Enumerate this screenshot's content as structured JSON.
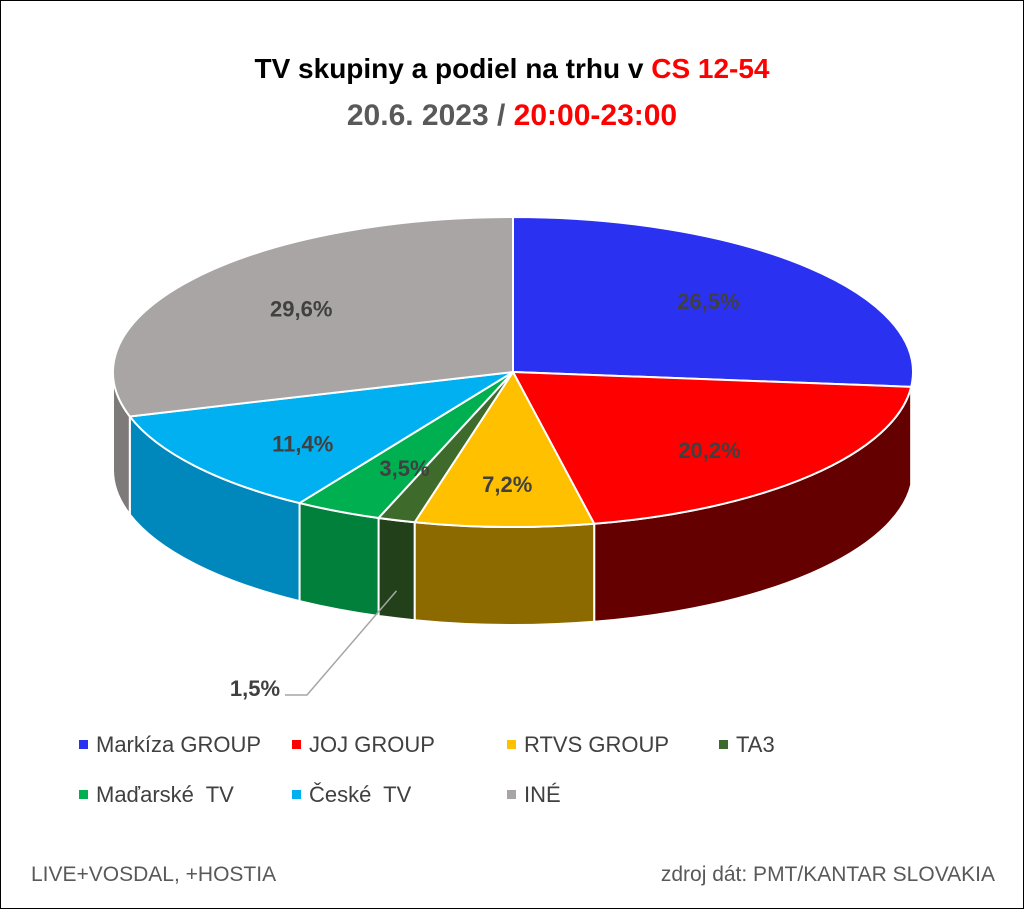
{
  "chart_data": {
    "type": "pie",
    "title_parts": [
      "TV skupiny a podiel na trhu v ",
      "CS 12-54"
    ],
    "subtitle_parts": [
      "20.6. 2023 / ",
      "20:00-23:00"
    ],
    "legend_placement": "bottom",
    "slices": [
      {
        "name": "Markíza GROUP",
        "value": 26.5,
        "label": "26,5%",
        "color": "#2b31f0",
        "side": "#2226bd"
      },
      {
        "name": "JOJ GROUP",
        "value": 20.2,
        "label": "20,2%",
        "color": "#ff0000",
        "side": "#640000"
      },
      {
        "name": "RTVS GROUP",
        "value": 7.2,
        "label": "7,2%",
        "color": "#ffc000",
        "side": "#8c6a00"
      },
      {
        "name": "TA3",
        "value": 1.5,
        "label": "1,5%",
        "color": "#3e6a2c",
        "side": "#22401a"
      },
      {
        "name": "Maďarské  TV",
        "value": 3.5,
        "label": "3,5%",
        "color": "#00b050",
        "side": "#00803a"
      },
      {
        "name": "České  TV",
        "value": 11.4,
        "label": "11,4%",
        "color": "#00b0f0",
        "side": "#0088bc"
      },
      {
        "name": "INÉ",
        "value": 29.6,
        "label": "29,6%",
        "color": "#a9a5a4",
        "side": "#7d7a79"
      }
    ]
  },
  "footer": {
    "left": "LIVE+VOSDAL, +HOSTIA",
    "right": "zdroj dát: PMT/KANTAR SLOVAKIA"
  }
}
